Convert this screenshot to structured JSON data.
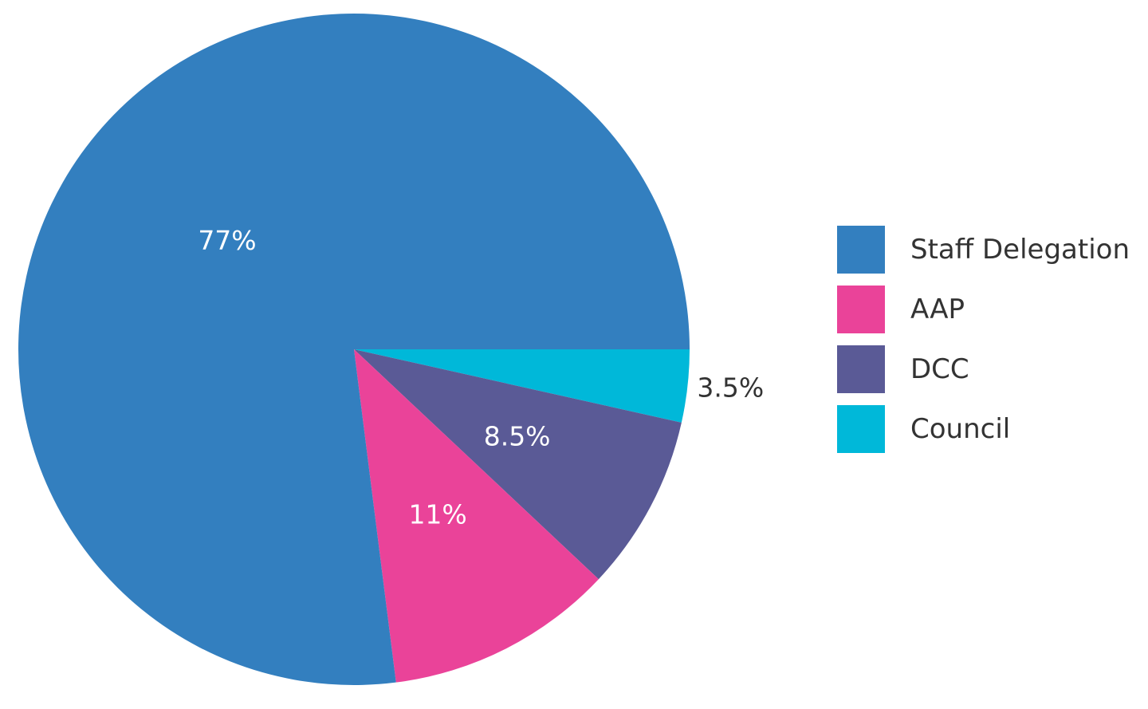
{
  "chart_data": {
    "type": "pie",
    "title": "",
    "start_angle": "3 o'clock",
    "direction": "clockwise",
    "slices": [
      {
        "label": "Council",
        "value": 3.5,
        "display": "3.5%",
        "color": "#00B8D9",
        "label_position": "outside"
      },
      {
        "label": "DCC",
        "value": 8.5,
        "display": "8.5%",
        "color": "#5A5A96",
        "label_position": "inside"
      },
      {
        "label": "AAP",
        "value": 11,
        "display": "11%",
        "color": "#EA4399",
        "label_position": "inside"
      },
      {
        "label": "Staff Delegation",
        "value": 77,
        "display": "77%",
        "color": "#337FBF",
        "label_position": "inside"
      }
    ],
    "legend": {
      "position": "right",
      "entries": [
        "Staff Delegation",
        "AAP",
        "DCC",
        "Council"
      ]
    }
  },
  "legend": {
    "items": [
      {
        "label": "Staff Delegation",
        "color": "#337FBF"
      },
      {
        "label": "AAP",
        "color": "#EA4399"
      },
      {
        "label": "DCC",
        "color": "#5A5A96"
      },
      {
        "label": "Council",
        "color": "#00B8D9"
      }
    ]
  }
}
